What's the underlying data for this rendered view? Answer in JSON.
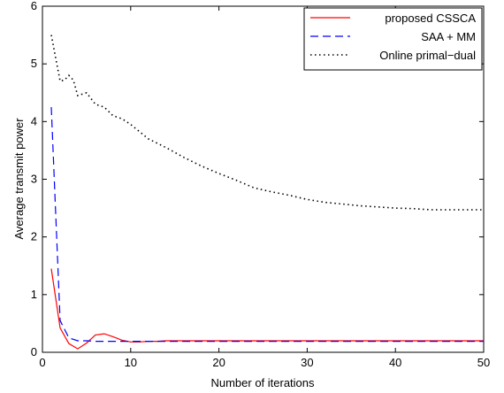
{
  "chart_data": {
    "type": "line",
    "title": "",
    "xlabel": "Number of iterations",
    "ylabel": "Average transmit power",
    "xlim": [
      0,
      50
    ],
    "ylim": [
      0,
      6
    ],
    "xticks": [
      0,
      10,
      20,
      30,
      40,
      50
    ],
    "yticks": [
      0,
      1,
      2,
      3,
      4,
      5,
      6
    ],
    "grid": false,
    "legend_position": "top-right",
    "series": [
      {
        "name": "proposed CSSCA",
        "color": "#ff0000",
        "style": "solid",
        "x": [
          1,
          2,
          3,
          4,
          5,
          6,
          7,
          8,
          9,
          10,
          11,
          12,
          13,
          14,
          15,
          20,
          25,
          30,
          35,
          40,
          45,
          50
        ],
        "y": [
          1.45,
          0.42,
          0.15,
          0.06,
          0.16,
          0.3,
          0.32,
          0.27,
          0.21,
          0.18,
          0.18,
          0.19,
          0.19,
          0.2,
          0.2,
          0.2,
          0.2,
          0.2,
          0.2,
          0.2,
          0.2,
          0.2
        ]
      },
      {
        "name": "SAA + MM",
        "color": "#0000ff",
        "style": "dashed",
        "x": [
          1,
          2,
          3,
          4,
          5,
          6,
          7,
          8,
          9,
          10,
          12,
          15,
          20,
          25,
          30,
          35,
          40,
          45,
          50
        ],
        "y": [
          4.25,
          0.55,
          0.25,
          0.2,
          0.2,
          0.19,
          0.19,
          0.19,
          0.19,
          0.19,
          0.19,
          0.19,
          0.19,
          0.19,
          0.19,
          0.19,
          0.19,
          0.19,
          0.19
        ]
      },
      {
        "name": "Online primal−dual",
        "color": "#000000",
        "style": "dotted",
        "x": [
          1,
          1.5,
          2,
          2.5,
          3,
          3.5,
          4,
          5,
          6,
          7,
          8,
          9,
          10,
          12,
          14,
          16,
          18,
          20,
          22,
          24,
          26,
          28,
          30,
          32,
          34,
          36,
          38,
          40,
          42,
          44,
          46,
          48,
          50
        ],
        "y": [
          5.5,
          5.1,
          4.7,
          4.72,
          4.8,
          4.72,
          4.45,
          4.5,
          4.3,
          4.25,
          4.1,
          4.05,
          3.95,
          3.7,
          3.55,
          3.38,
          3.23,
          3.1,
          2.98,
          2.85,
          2.78,
          2.72,
          2.65,
          2.6,
          2.57,
          2.54,
          2.52,
          2.5,
          2.49,
          2.47,
          2.47,
          2.47,
          2.47
        ]
      }
    ]
  }
}
